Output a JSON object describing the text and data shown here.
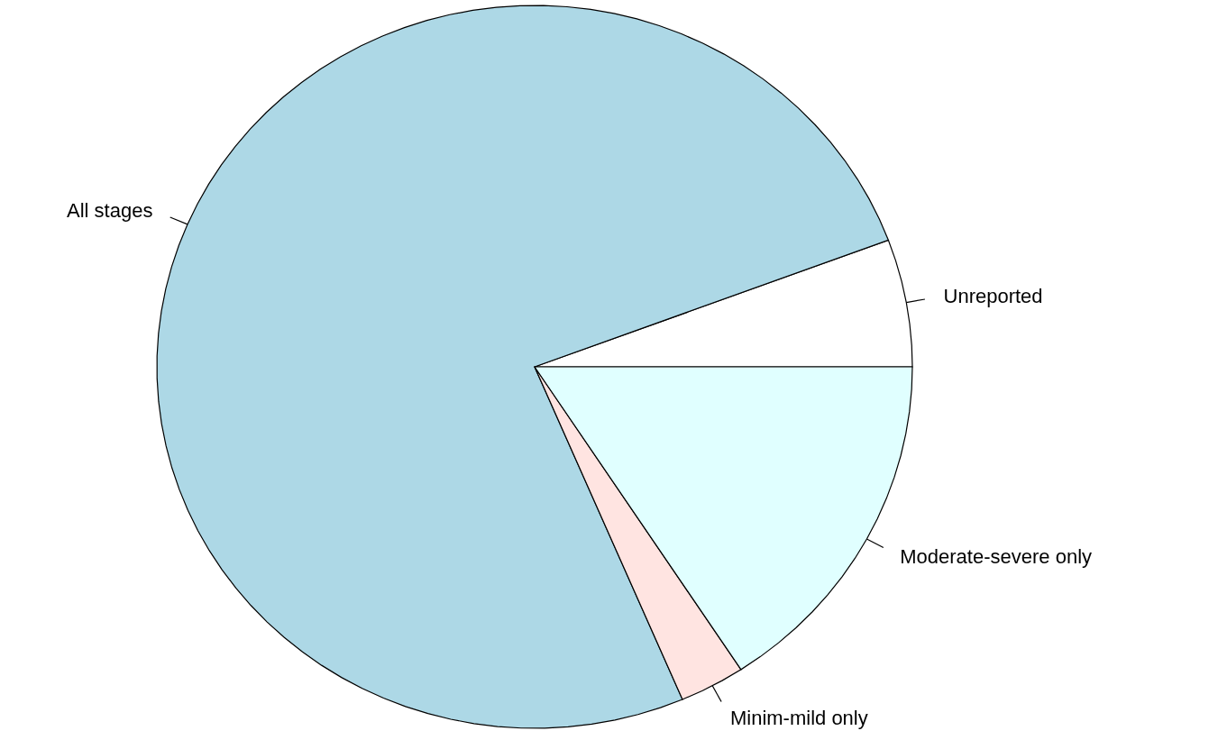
{
  "chart_data": {
    "type": "pie",
    "categories": [
      "Unreported",
      "All stages",
      "Minim-mild only",
      "Moderate-severe only"
    ],
    "values": [
      5.7,
      75.7,
      2.8,
      15.8
    ],
    "colors": [
      "#ffffff",
      "#add8e6",
      "#ffe4e1",
      "#e0ffff"
    ]
  }
}
